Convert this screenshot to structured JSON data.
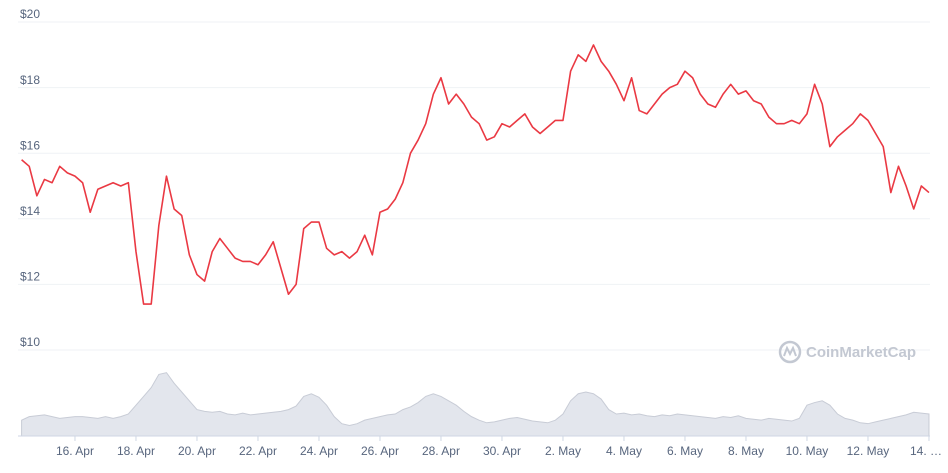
{
  "chart_data": {
    "type": "line",
    "watermark": "CoinMarketCap",
    "categories": [
      null,
      null,
      null,
      null,
      null,
      null,
      null,
      "16. Apr",
      null,
      null,
      null,
      null,
      null,
      null,
      null,
      "18. Apr",
      null,
      null,
      null,
      null,
      null,
      null,
      null,
      "20. Apr",
      null,
      null,
      null,
      null,
      null,
      null,
      null,
      "22. Apr",
      null,
      null,
      null,
      null,
      null,
      null,
      null,
      "24. Apr",
      null,
      null,
      null,
      null,
      null,
      null,
      null,
      "26. Apr",
      null,
      null,
      null,
      null,
      null,
      null,
      null,
      "28. Apr",
      null,
      null,
      null,
      null,
      null,
      null,
      null,
      "30. Apr",
      null,
      null,
      null,
      null,
      null,
      null,
      null,
      "2. May",
      null,
      null,
      null,
      null,
      null,
      null,
      null,
      "4. May",
      null,
      null,
      null,
      null,
      null,
      null,
      null,
      "6. May",
      null,
      null,
      null,
      null,
      null,
      null,
      null,
      "8. May",
      null,
      null,
      null,
      null,
      null,
      null,
      null,
      "10. May",
      null,
      null,
      null,
      null,
      null,
      null,
      null,
      "12. May",
      null,
      null,
      null,
      null,
      null,
      null,
      null,
      "14. …"
    ],
    "series": [
      {
        "name": "Price",
        "color": "#ea3943",
        "values": [
          15.8,
          15.6,
          14.7,
          15.2,
          15.1,
          15.6,
          15.4,
          15.3,
          15.1,
          14.2,
          14.9,
          15.0,
          15.1,
          15.0,
          15.1,
          13.0,
          11.4,
          11.4,
          13.8,
          15.3,
          14.3,
          14.1,
          12.9,
          12.3,
          12.1,
          13.0,
          13.4,
          13.1,
          12.8,
          12.7,
          12.7,
          12.6,
          12.9,
          13.3,
          12.5,
          11.7,
          12.0,
          13.7,
          13.9,
          13.9,
          13.1,
          12.9,
          13.0,
          12.8,
          13.0,
          13.5,
          12.9,
          14.2,
          14.3,
          14.6,
          15.1,
          16.0,
          16.4,
          16.9,
          17.8,
          18.3,
          17.5,
          17.8,
          17.5,
          17.1,
          16.9,
          16.4,
          16.5,
          16.9,
          16.8,
          17.0,
          17.2,
          16.8,
          16.6,
          16.8,
          17.0,
          17.0,
          18.5,
          19.0,
          18.8,
          19.3,
          18.8,
          18.5,
          18.1,
          17.6,
          18.3,
          17.3,
          17.2,
          17.5,
          17.8,
          18.0,
          18.1,
          18.5,
          18.3,
          17.8,
          17.5,
          17.4,
          17.8,
          18.1,
          17.8,
          17.9,
          17.6,
          17.5,
          17.1,
          16.9,
          16.9,
          17.0,
          16.9,
          17.2,
          18.1,
          17.5,
          16.2,
          16.5,
          16.7,
          16.9,
          17.2,
          17.0,
          16.6,
          16.2,
          14.8,
          15.6,
          15.0,
          14.3,
          15.0,
          14.8
        ]
      },
      {
        "name": "Volume",
        "color": "#e3e6ed",
        "axis": "y2",
        "values": [
          18,
          22,
          23,
          24,
          22,
          20,
          21,
          22,
          22,
          21,
          20,
          22,
          20,
          22,
          25,
          35,
          45,
          55,
          70,
          72,
          60,
          50,
          40,
          30,
          28,
          27,
          28,
          25,
          24,
          26,
          24,
          25,
          26,
          27,
          28,
          30,
          34,
          45,
          48,
          44,
          35,
          22,
          14,
          12,
          14,
          18,
          20,
          22,
          24,
          25,
          30,
          33,
          38,
          45,
          48,
          45,
          40,
          35,
          28,
          22,
          18,
          15,
          16,
          18,
          20,
          21,
          19,
          17,
          16,
          15,
          18,
          25,
          40,
          48,
          50,
          48,
          42,
          30,
          25,
          26,
          24,
          25,
          23,
          22,
          24,
          23,
          25,
          24,
          23,
          22,
          21,
          20,
          22,
          21,
          23,
          20,
          19,
          18,
          20,
          19,
          18,
          17,
          20,
          35,
          38,
          40,
          35,
          25,
          20,
          18,
          15,
          14,
          16,
          18,
          20,
          22,
          24,
          27,
          26,
          25
        ]
      }
    ],
    "ylim": [
      10,
      20
    ],
    "yticks": [
      {
        "value": 10,
        "label": "$10"
      },
      {
        "value": 12,
        "label": "$12"
      },
      {
        "value": 14,
        "label": "$14"
      },
      {
        "value": 16,
        "label": "$16"
      },
      {
        "value": 18,
        "label": "$18"
      },
      {
        "value": 20,
        "label": "$20"
      }
    ],
    "y2lim": [
      0,
      100
    ],
    "grid": true
  }
}
